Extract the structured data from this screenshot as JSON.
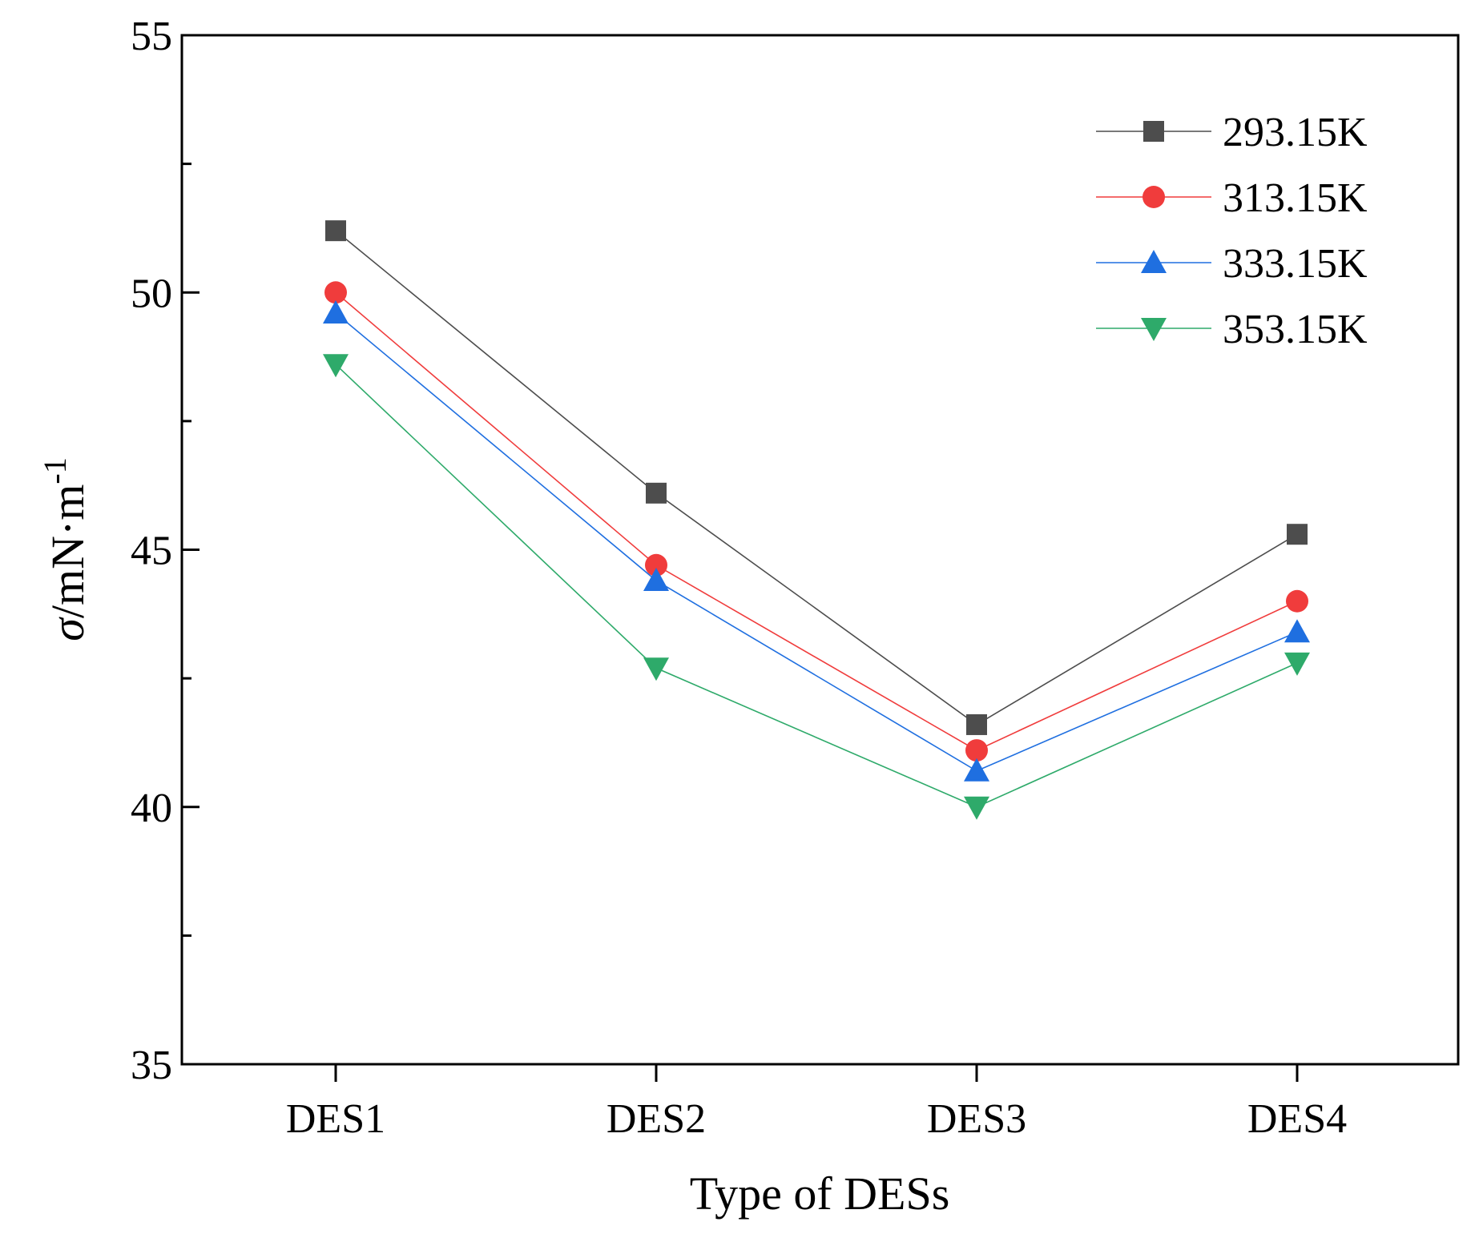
{
  "chart_data": {
    "type": "line",
    "title": "",
    "xlabel": "Type of DESs",
    "ylabel": {
      "symbol": "σ",
      "unit": "/mN·m",
      "exponent": "-1"
    },
    "categories": [
      "DES1",
      "DES2",
      "DES3",
      "DES4"
    ],
    "ylim": [
      35,
      55
    ],
    "yticks": [
      35,
      40,
      45,
      50,
      55
    ],
    "grid": false,
    "legend_position": "top-right",
    "series": [
      {
        "name": "293.15K",
        "marker": "square",
        "color": "#4d4d4d",
        "values": [
          51.2,
          46.1,
          41.6,
          45.3
        ]
      },
      {
        "name": "313.15K",
        "marker": "circle",
        "color": "#f03c3c",
        "values": [
          50.0,
          44.7,
          41.1,
          44.0
        ]
      },
      {
        "name": "333.15K",
        "marker": "triangle-up",
        "color": "#1f6fe0",
        "values": [
          49.6,
          44.4,
          40.7,
          43.4
        ]
      },
      {
        "name": "353.15K",
        "marker": "triangle-down",
        "color": "#2eaa6a",
        "values": [
          48.6,
          42.7,
          40.0,
          42.8
        ]
      }
    ]
  }
}
